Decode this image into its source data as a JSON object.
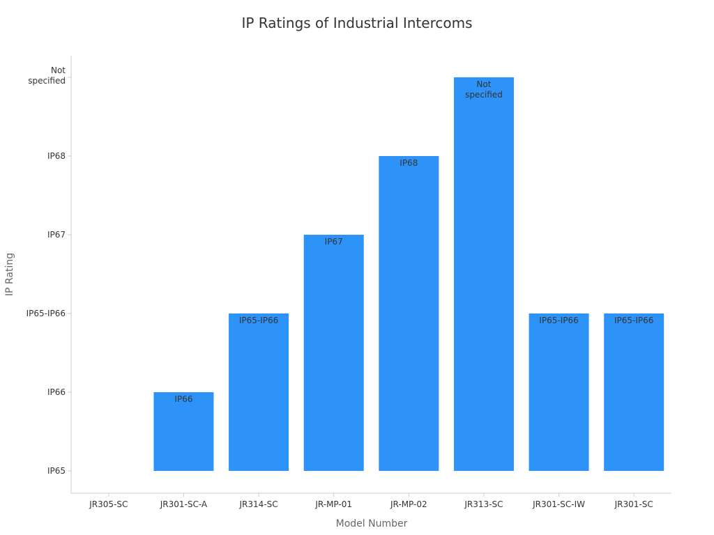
{
  "chart_data": {
    "type": "bar",
    "title": "IP Ratings of Industrial Intercoms",
    "xlabel": "Model Number",
    "ylabel": "IP Rating",
    "y_categories": [
      "IP65",
      "IP66",
      "IP65-IP66",
      "IP67",
      "IP68",
      "Not specified"
    ],
    "categories": [
      "JR305-SC",
      "JR301-SC-A",
      "JR314-SC",
      "JR-MP-01",
      "JR-MP-02",
      "JR313-SC",
      "JR301-SC-IW",
      "JR301-SC"
    ],
    "values": [
      "IP65",
      "IP66",
      "IP65-IP66",
      "IP67",
      "IP68",
      "Not specified",
      "IP65-IP66",
      "IP65-IP66"
    ],
    "data_labels": [
      null,
      "IP66",
      "IP65-IP66",
      "IP67",
      "IP68",
      "Not specified",
      "IP65-IP66",
      "IP65-IP66"
    ],
    "bar_color": "#2e93f8",
    "grid": false,
    "legend": "none"
  }
}
